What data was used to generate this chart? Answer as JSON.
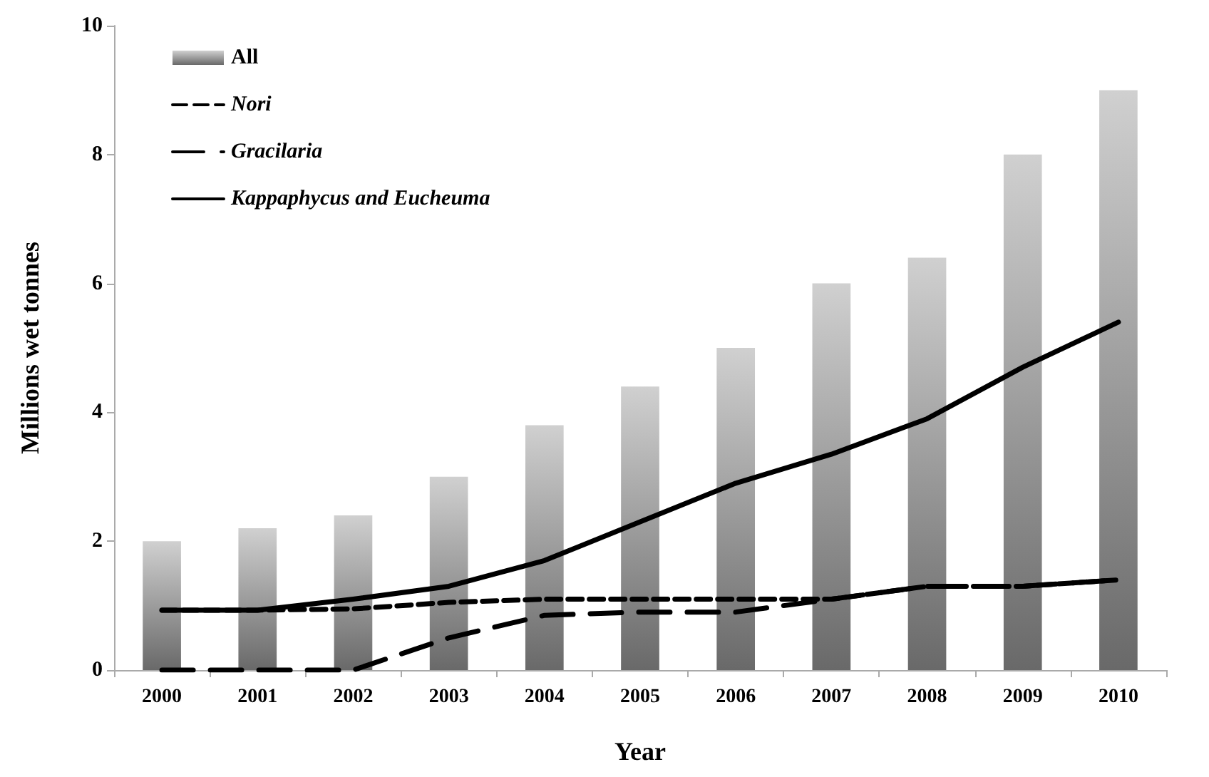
{
  "chart_data": {
    "type": "bar",
    "xlabel": "Year",
    "ylabel": "Millions wet tonnes",
    "categories": [
      "2000",
      "2001",
      "2002",
      "2003",
      "2004",
      "2005",
      "2006",
      "2007",
      "2008",
      "2009",
      "2010"
    ],
    "series": [
      {
        "name": "All",
        "color": "#9a9a9a",
        "values": [
          2,
          2.2,
          2.4,
          3,
          3.8,
          4.4,
          5,
          6,
          6.4,
          8,
          9
        ]
      },
      {
        "name": "Nori",
        "type": "line",
        "line_style": "dashed",
        "color": "#000000",
        "values": [
          0.93,
          0.93,
          0.95,
          1.05,
          1.1,
          1.1,
          1.1,
          1.1,
          1.3,
          1.3,
          1.4
        ]
      },
      {
        "name": "Gracilaria",
        "type": "line",
        "line_style": "dashed",
        "color": "#000000",
        "values": [
          0,
          0,
          0,
          0.5,
          0.85,
          0.9,
          0.9,
          1.1,
          1.3,
          1.3,
          1.4
        ]
      },
      {
        "name": "Kappaphycus and Eucheuma",
        "type": "line",
        "line_style": "solid",
        "color": "#000000",
        "values": [
          0.93,
          0.93,
          1.1,
          1.3,
          1.7,
          2.3,
          2.9,
          3.35,
          3.9,
          4.7,
          5.4
        ]
      }
    ],
    "ylim": [
      0,
      10
    ],
    "yticks": [
      0,
      2,
      4,
      6,
      8,
      10
    ],
    "grid": false,
    "legend": "top left"
  }
}
